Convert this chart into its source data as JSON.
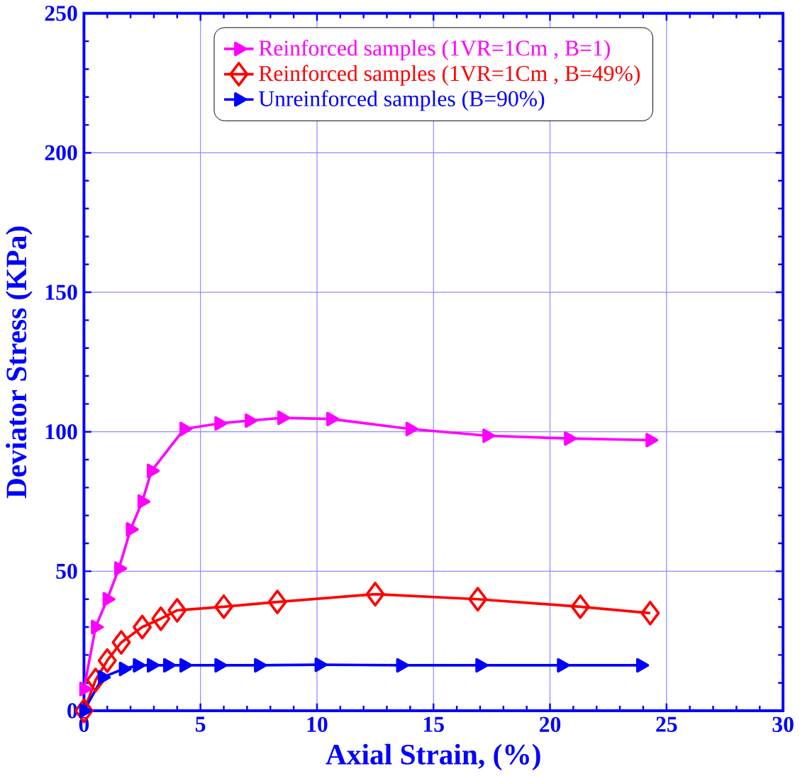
{
  "chart_data": {
    "type": "line",
    "xlabel": "Axial Strain, (%)",
    "ylabel": "Deviator Stress (KPa)",
    "xlim": [
      0,
      30
    ],
    "ylim": [
      0,
      250
    ],
    "xticks": [
      0,
      5,
      10,
      15,
      20,
      25,
      30
    ],
    "yticks": [
      0,
      50,
      100,
      150,
      200,
      250
    ],
    "grid": true,
    "legend": "top",
    "series": [
      {
        "name": "Reinforced samples (1VR=1Cm , B=1)",
        "color": "#ff00ff",
        "marker": "triangle",
        "x": [
          0,
          0.5,
          1.0,
          1.5,
          2.0,
          2.5,
          2.9,
          4.3,
          5.8,
          7.1,
          8.5,
          10.6,
          14.0,
          17.3,
          20.8,
          24.3
        ],
        "values": [
          7.8,
          30,
          40,
          51,
          65,
          75,
          86,
          101,
          103,
          104,
          105,
          104.6,
          101,
          98.6,
          97.6,
          97
        ]
      },
      {
        "name": "Reinforced samples (1VR=1Cm , B=49%)",
        "color": "#ff0000",
        "marker": "diamond",
        "x": [
          0,
          0.5,
          1.0,
          1.6,
          2.5,
          3.3,
          4.0,
          6.0,
          8.3,
          12.5,
          16.9,
          21.3,
          24.3
        ],
        "values": [
          0,
          11,
          18,
          24.5,
          30,
          33,
          36,
          37.3,
          39,
          41.8,
          40,
          37.3,
          35
        ]
      },
      {
        "name": "Unreinforced samples (B=90%)",
        "color": "#0000ff",
        "marker": "triangle",
        "x": [
          0,
          0.8,
          1.7,
          2.3,
          2.9,
          3.6,
          4.3,
          5.8,
          7.5,
          10.1,
          13.6,
          17.0,
          20.5,
          23.9
        ],
        "values": [
          0,
          12,
          15,
          16.3,
          16.3,
          16.3,
          16.3,
          16.3,
          16.3,
          16.5,
          16.3,
          16.3,
          16.3,
          16.3
        ]
      }
    ]
  }
}
